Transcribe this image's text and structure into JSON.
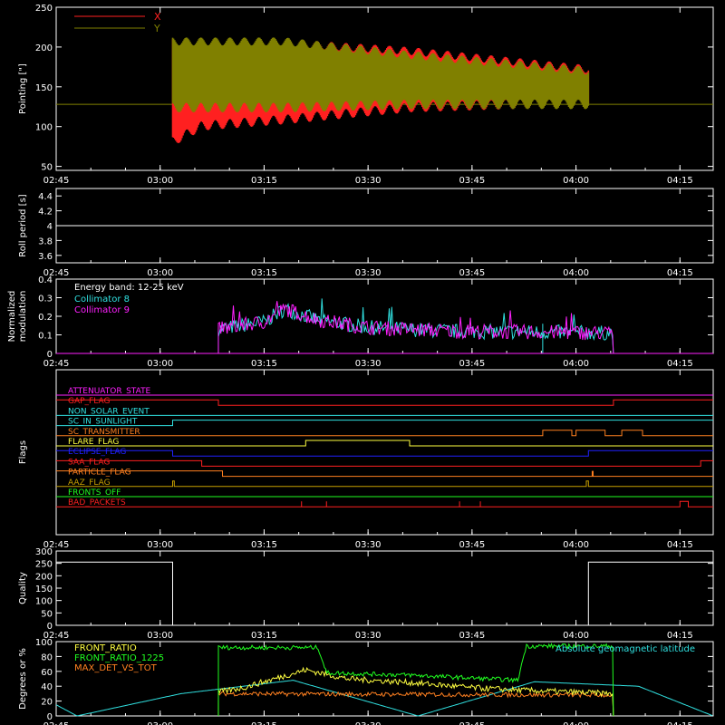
{
  "colors": {
    "bg": "#000000",
    "axis": "#ffffff",
    "red": "#ff2020",
    "olive": "#808000",
    "cyan": "#30e0e0",
    "magenta": "#ff20ff",
    "yellow": "#ffff40",
    "green": "#20ff20",
    "orange": "#ff8020",
    "blue": "#2020ff",
    "white": "#ffffff",
    "gold": "#c8a000"
  },
  "time_ticks": [
    "02:45",
    "03:00",
    "03:15",
    "03:30",
    "03:45",
    "04:00",
    "04:15"
  ],
  "chart_data": [
    {
      "id": "pointing",
      "type": "line",
      "ylabel": "Pointing [\"]",
      "ylim": [
        45,
        250
      ],
      "yticks": [
        50,
        100,
        150,
        200,
        250
      ],
      "legend": [
        "X",
        "Y"
      ],
      "series": [
        {
          "name": "X",
          "color": "red",
          "band": [
            [
              3.03,
              75,
              210
            ],
            [
              3.1,
              95,
              205
            ],
            [
              3.3,
              103,
              210
            ],
            [
              3.6,
              118,
              200
            ],
            [
              4.03,
              125,
              177
            ]
          ]
        },
        {
          "name": "Y",
          "color": "olive",
          "band": [
            [
              3.03,
              118,
              212
            ],
            [
              3.3,
              118,
              212
            ],
            [
              3.6,
              122,
              195
            ],
            [
              4.03,
              122,
              175
            ]
          ]
        }
      ],
      "baseline": 128
    },
    {
      "id": "roll",
      "type": "line",
      "ylabel": "Roll period [s]",
      "ylim": [
        3.5,
        4.5
      ],
      "yticks": [
        3.6,
        3.8,
        4.0,
        4.2,
        4.4
      ],
      "series": [
        {
          "name": "",
          "color": "white",
          "values": [
            [
              2.75,
              4.0
            ],
            [
              4.33,
              4.0
            ]
          ]
        }
      ]
    },
    {
      "id": "modulation",
      "type": "line",
      "ylabel": "Normalized modulation",
      "ylim": [
        0,
        0.4
      ],
      "yticks": [
        0,
        0.1,
        0.2,
        0.3,
        0.4
      ],
      "legend_title": "Energy band: 12-25 keV",
      "legend": [
        "Collimator 8",
        "Collimator 9"
      ],
      "range": [
        3.14,
        4.09
      ],
      "profile": [
        [
          3.14,
          0.13
        ],
        [
          3.25,
          0.17
        ],
        [
          3.3,
          0.24
        ],
        [
          3.38,
          0.18
        ],
        [
          3.5,
          0.14
        ],
        [
          3.7,
          0.12
        ],
        [
          4.09,
          0.11
        ]
      ]
    },
    {
      "id": "flags",
      "type": "table",
      "ylabel": "Flags",
      "labels": [
        "ATTENUATOR_STATE",
        "GAP_FLAG",
        "NON_SOLAR_EVENT",
        "SC_IN_SUNLIGHT",
        "SC_TRANSMITTER",
        "FLARE_FLAG",
        "ECLIPSE_FLAG",
        "SAA_FLAG",
        "PARTICLE_FLAG",
        "AAZ_FLAG",
        "FRONTS_OFF",
        "BAD_PACKETS"
      ],
      "label_colors": [
        "magenta",
        "red",
        "cyan",
        "cyan",
        "orange",
        "yellow",
        "blue",
        "red",
        "orange",
        "gold",
        "green",
        "red"
      ],
      "steps": [
        [
          [
            2.75,
            0
          ],
          [
            4.33,
            0
          ]
        ],
        [
          [
            2.75,
            1
          ],
          [
            3.14,
            1
          ],
          [
            3.14,
            0
          ],
          [
            4.09,
            0
          ],
          [
            4.09,
            1
          ],
          [
            4.33,
            1
          ]
        ],
        [
          [
            2.75,
            0
          ],
          [
            4.33,
            0
          ]
        ],
        [
          [
            2.75,
            0
          ],
          [
            3.03,
            0
          ],
          [
            3.03,
            1
          ],
          [
            4.33,
            1
          ]
        ],
        [
          [
            2.75,
            0
          ],
          [
            3.92,
            0
          ],
          [
            3.92,
            1
          ],
          [
            3.99,
            1
          ],
          [
            3.99,
            0
          ],
          [
            4.0,
            0
          ],
          [
            4.0,
            1
          ],
          [
            4.07,
            1
          ],
          [
            4.07,
            0
          ],
          [
            4.11,
            0
          ],
          [
            4.11,
            1
          ],
          [
            4.16,
            1
          ],
          [
            4.16,
            0
          ],
          [
            4.33,
            0
          ]
        ],
        [
          [
            2.75,
            0
          ],
          [
            3.35,
            0
          ],
          [
            3.35,
            1
          ],
          [
            3.6,
            1
          ],
          [
            3.6,
            0
          ],
          [
            4.33,
            0
          ]
        ],
        [
          [
            2.75,
            1
          ],
          [
            3.03,
            1
          ],
          [
            3.03,
            0
          ],
          [
            4.03,
            0
          ],
          [
            4.03,
            1
          ],
          [
            4.33,
            1
          ]
        ],
        [
          [
            2.75,
            1
          ],
          [
            3.1,
            1
          ],
          [
            3.1,
            0
          ],
          [
            4.3,
            0
          ],
          [
            4.3,
            1
          ],
          [
            4.33,
            1
          ]
        ],
        [
          [
            2.75,
            1
          ],
          [
            3.15,
            1
          ],
          [
            3.15,
            0
          ],
          [
            4.33,
            0
          ]
        ],
        [
          [
            2.75,
            0
          ],
          [
            3.03,
            0
          ],
          [
            3.03,
            1
          ],
          [
            3.034,
            1
          ],
          [
            3.034,
            0
          ],
          [
            4.025,
            0
          ],
          [
            4.025,
            1
          ],
          [
            4.03,
            1
          ],
          [
            4.03,
            0
          ],
          [
            4.33,
            0
          ]
        ],
        [
          [
            2.75,
            0
          ],
          [
            4.33,
            0
          ]
        ],
        [
          [
            2.75,
            0
          ],
          [
            4.25,
            0
          ],
          [
            4.25,
            1
          ],
          [
            4.27,
            1
          ],
          [
            4.27,
            0
          ],
          [
            4.33,
            0
          ]
        ]
      ]
    },
    {
      "id": "quality",
      "type": "line",
      "ylabel": "Quality",
      "ylim": [
        0,
        300
      ],
      "yticks": [
        0,
        50,
        100,
        150,
        200,
        250,
        300
      ],
      "series": [
        {
          "name": "",
          "color": "white",
          "values": [
            [
              2.75,
              255
            ],
            [
              3.03,
              255
            ],
            [
              3.03,
              0
            ],
            [
              4.03,
              0
            ],
            [
              4.03,
              255
            ],
            [
              4.33,
              255
            ]
          ]
        }
      ]
    },
    {
      "id": "ratios",
      "type": "line",
      "ylabel": "Degrees or %",
      "ylim": [
        0,
        100
      ],
      "yticks": [
        0,
        20,
        40,
        60,
        80,
        100
      ],
      "legend": [
        "FRONT_RATIO",
        "FRONT_RATIO_1225",
        "MAX_DET_VS_TOT"
      ],
      "right_legend": "Absolute geomagnetic latitude",
      "geomag": [
        [
          2.75,
          15
        ],
        [
          2.8,
          0
        ],
        [
          3.05,
          30
        ],
        [
          3.32,
          48
        ],
        [
          3.62,
          0
        ],
        [
          3.9,
          46
        ],
        [
          4.15,
          40
        ],
        [
          4.33,
          0
        ]
      ],
      "front_ratio": [
        [
          3.14,
          32
        ],
        [
          3.2,
          38
        ],
        [
          3.35,
          62
        ],
        [
          3.45,
          50
        ],
        [
          3.6,
          45
        ],
        [
          3.75,
          38
        ],
        [
          3.85,
          35
        ],
        [
          4.09,
          30
        ]
      ],
      "front_ratio_1225": [
        [
          3.14,
          92
        ],
        [
          3.38,
          92
        ],
        [
          3.4,
          58
        ],
        [
          3.6,
          55
        ],
        [
          3.86,
          48
        ],
        [
          3.88,
          94
        ],
        [
          4.09,
          94
        ]
      ],
      "max_det": [
        [
          3.14,
          30
        ],
        [
          4.09,
          28
        ]
      ]
    }
  ]
}
